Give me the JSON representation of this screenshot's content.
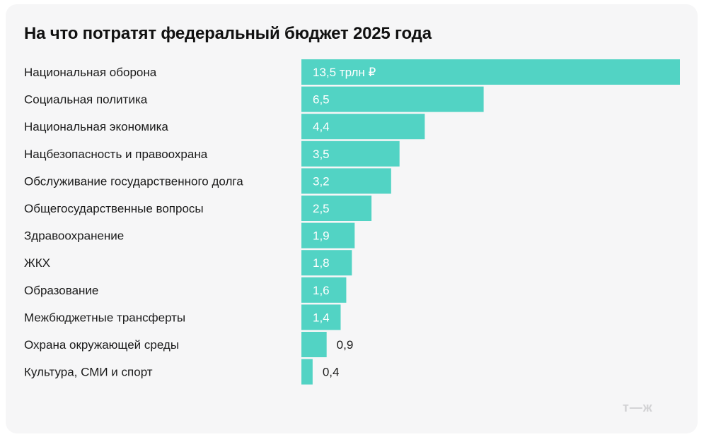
{
  "colors": {
    "bar": "#52d3c4",
    "card_background": "#f6f6f7",
    "text": "#1a1a1a",
    "value_inside": "#ffffff",
    "value_outside": "#1a1a1a",
    "logo": "#d2d2d4"
  },
  "logo": {
    "text": "т—ж"
  },
  "chart_data": {
    "type": "bar",
    "orientation": "horizontal",
    "title": "На что потратят федеральный бюджет 2025 года",
    "unit": "трлн ₽",
    "categories": [
      "Национальная оборона",
      "Социальная политика",
      "Национальная экономика",
      "Нацбезопасность и правоохрана",
      "Обслуживание государственного долга",
      "Общегосударственные вопросы",
      "Здравоохранение",
      "ЖКХ",
      "Образование",
      "Межбюджетные трансферты",
      "Охрана окружающей среды",
      "Культура, СМИ и спорт"
    ],
    "values": [
      13.5,
      6.5,
      4.4,
      3.5,
      3.2,
      2.5,
      1.9,
      1.8,
      1.6,
      1.4,
      0.9,
      0.4
    ],
    "value_labels": [
      "13,5 трлн ₽",
      "6,5",
      "4,4",
      "3,5",
      "3,2",
      "2,5",
      "1,9",
      "1,8",
      "1,6",
      "1,4",
      "0,9",
      "0,4"
    ],
    "xlim": [
      0,
      13.5
    ],
    "grid": false,
    "legend": "none"
  }
}
